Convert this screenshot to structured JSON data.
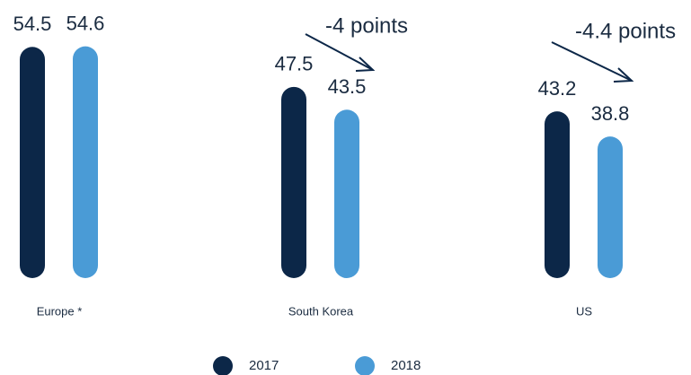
{
  "chart_data": {
    "type": "bar",
    "categories": [
      "Europe *",
      "South Korea",
      "US"
    ],
    "series": [
      {
        "name": "2017",
        "color": "#0c2748",
        "values": [
          54.5,
          47.5,
          43.2
        ]
      },
      {
        "name": "2018",
        "color": "#4a9bd6",
        "values": [
          54.6,
          43.5,
          38.8
        ]
      }
    ],
    "ylim": [
      14,
      58
    ],
    "annotations": [
      "-4 points",
      "-4.4 points"
    ]
  }
}
